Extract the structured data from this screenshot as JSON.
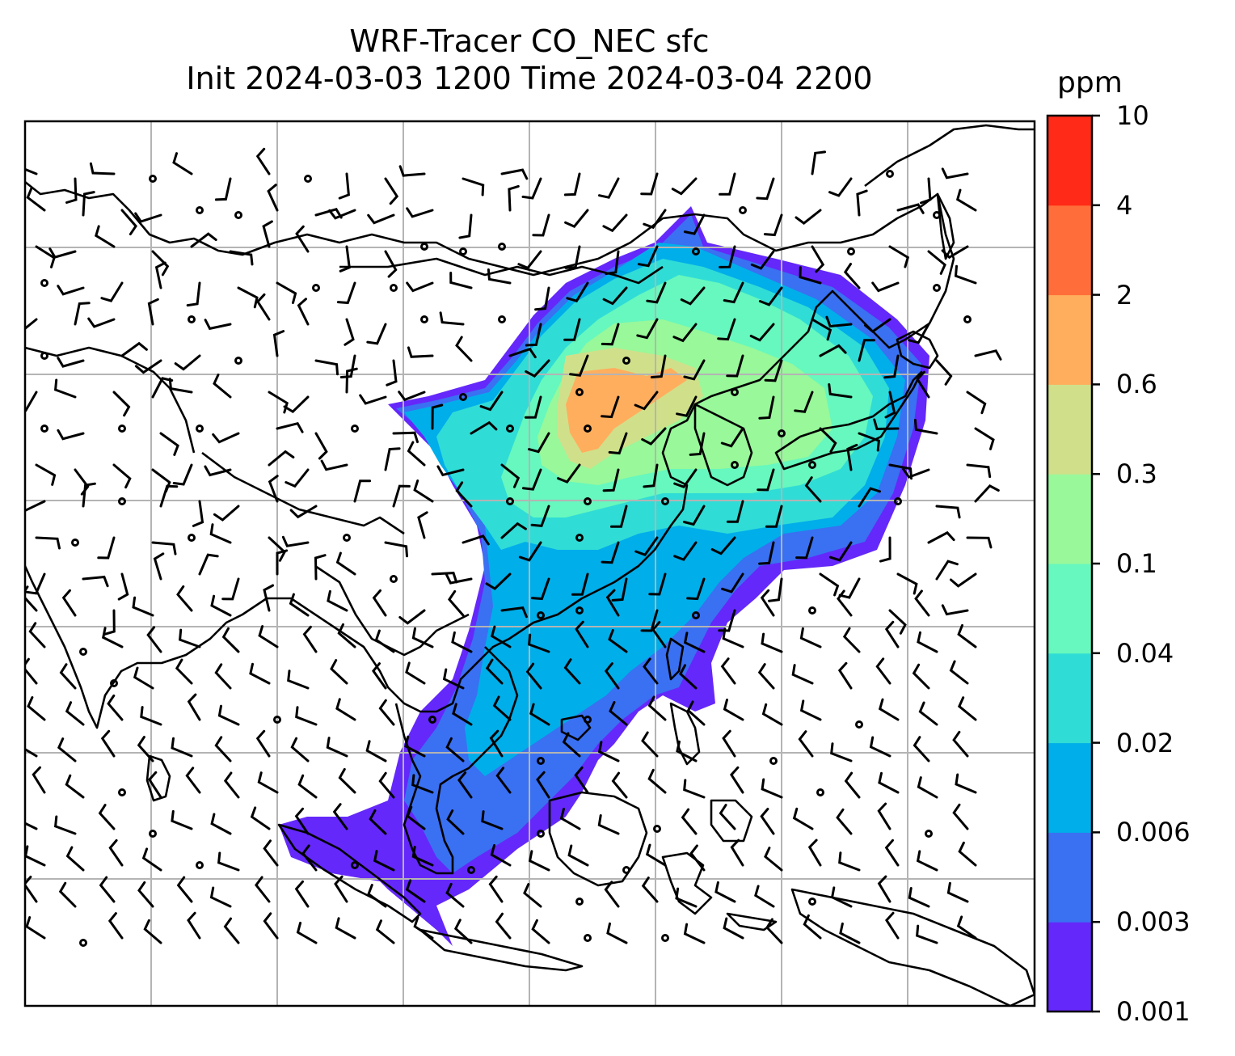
{
  "title": {
    "line1": "WRF-Tracer CO_NEC sfc",
    "line2": "Init 2024-03-03 1200 Time 2024-03-04 2200"
  },
  "colorbar": {
    "unit": "ppm",
    "levels": [
      "0.001",
      "0.003",
      "0.006",
      "0.02",
      "0.04",
      "0.1",
      "0.3",
      "0.6",
      "2",
      "4",
      "10"
    ],
    "colors": [
      "#6428fa",
      "#3a70f2",
      "#00aeea",
      "#30dcd6",
      "#66f8be",
      "#98f89a",
      "#d0e08a",
      "#ffae5e",
      "#ff6e3a",
      "#ff2a18"
    ]
  },
  "map": {
    "coastline_color": "#000000",
    "gridline_color": "#b4b4b4",
    "wind_barb_color": "#000000"
  }
}
